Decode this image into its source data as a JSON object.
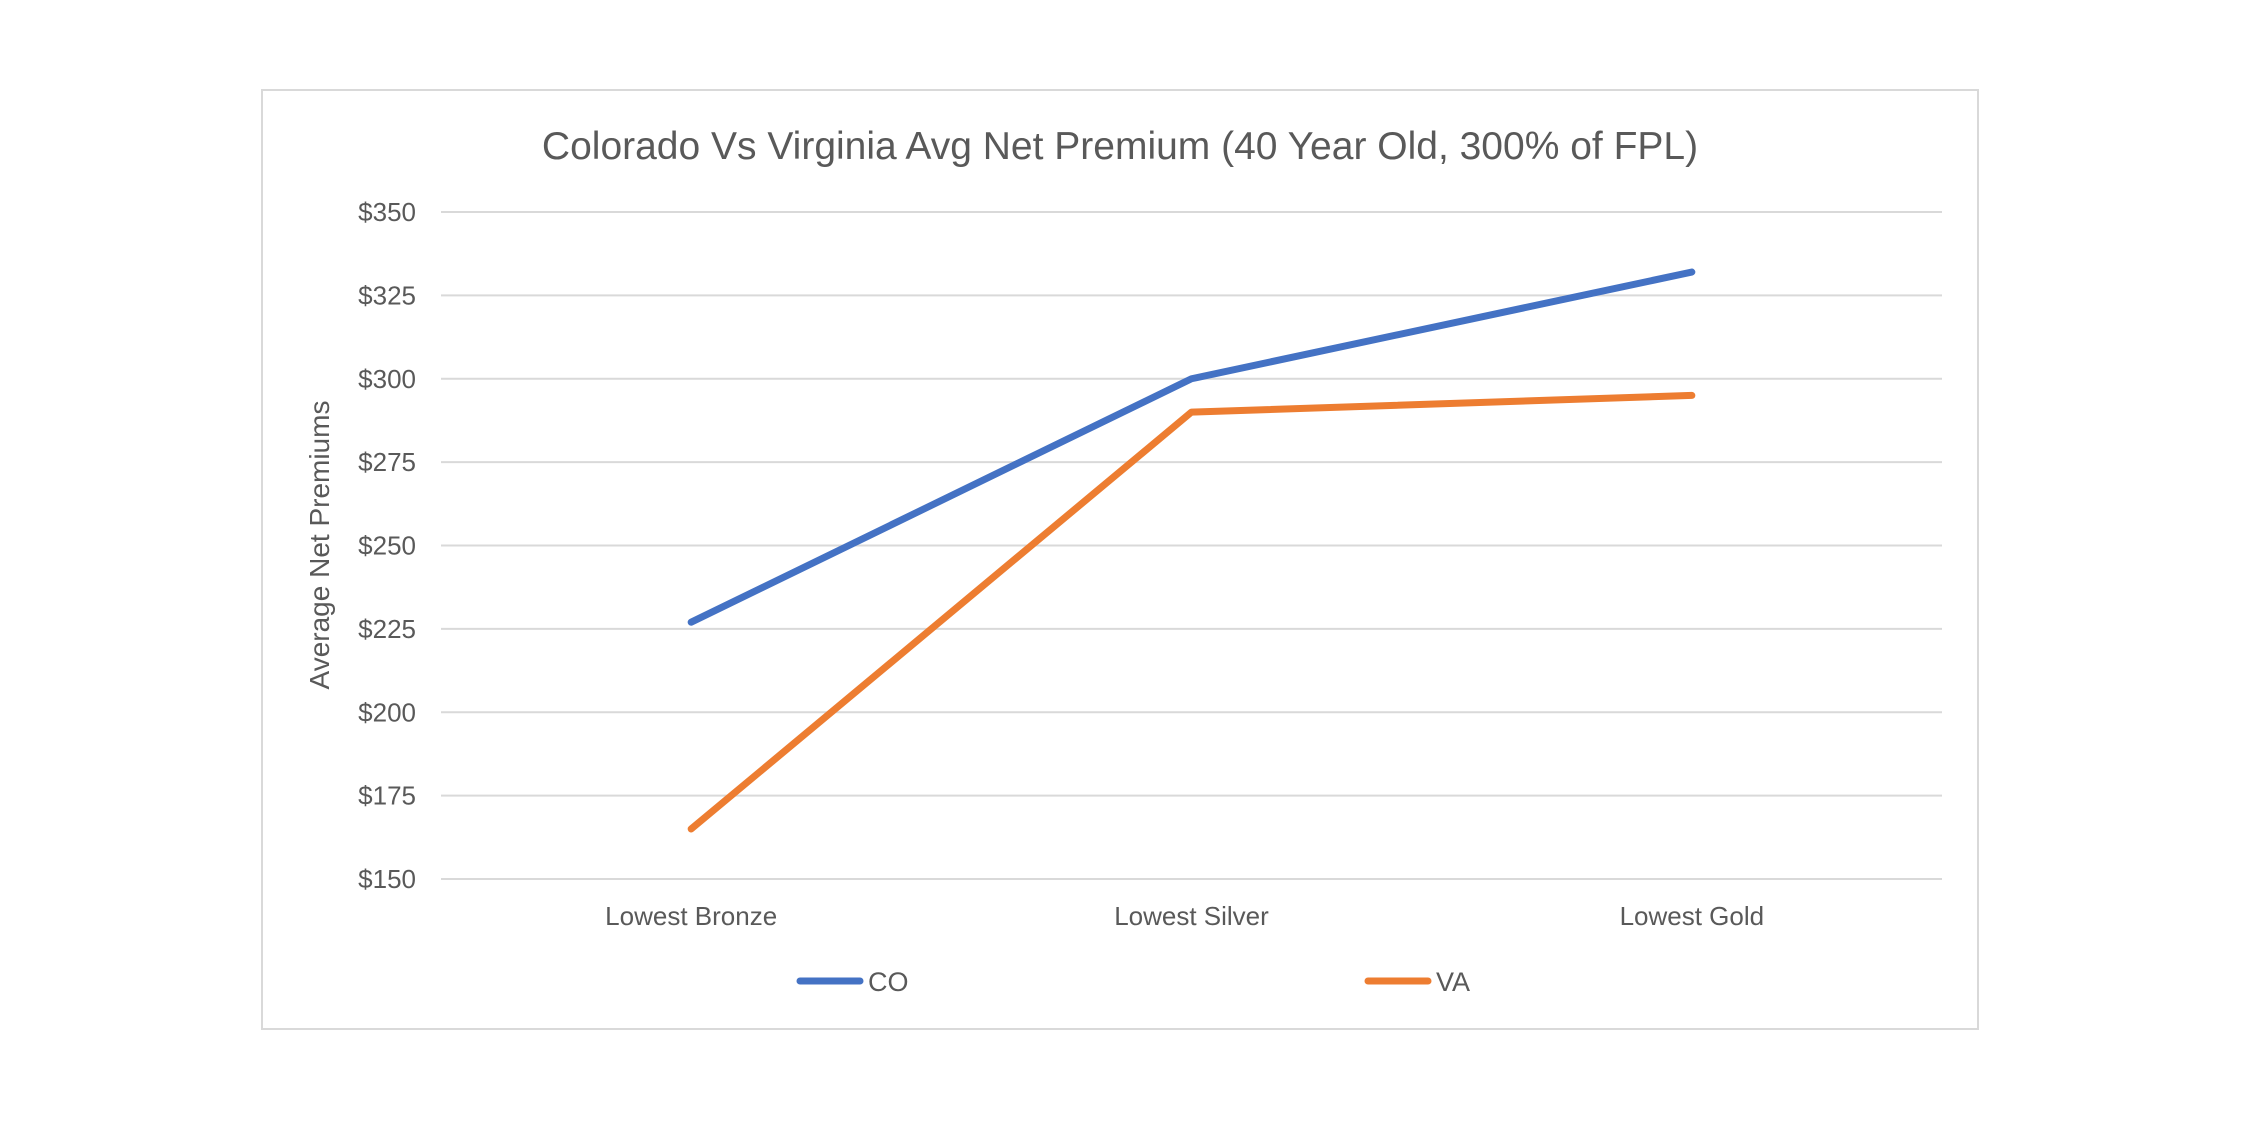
{
  "chart_data": {
    "type": "line",
    "title": "Colorado Vs Virginia Avg Net Premium (40 Year Old, 300% of FPL)",
    "xlabel": "",
    "ylabel": "Average Net Premiums",
    "categories": [
      "Lowest Bronze",
      "Lowest Silver",
      "Lowest Gold"
    ],
    "series": [
      {
        "name": "CO",
        "color": "#4472c4",
        "values": [
          227,
          300,
          332
        ]
      },
      {
        "name": "VA",
        "color": "#ed7d31",
        "values": [
          165,
          290,
          295
        ]
      }
    ],
    "ylim": [
      150,
      350
    ],
    "yticks": [
      150,
      175,
      200,
      225,
      250,
      275,
      300,
      325,
      350
    ],
    "ytick_labels": [
      "$150",
      "$175",
      "$200",
      "$225",
      "$250",
      "$275",
      "$300",
      "$325",
      "$350"
    ],
    "grid": true,
    "legend_position": "bottom"
  }
}
